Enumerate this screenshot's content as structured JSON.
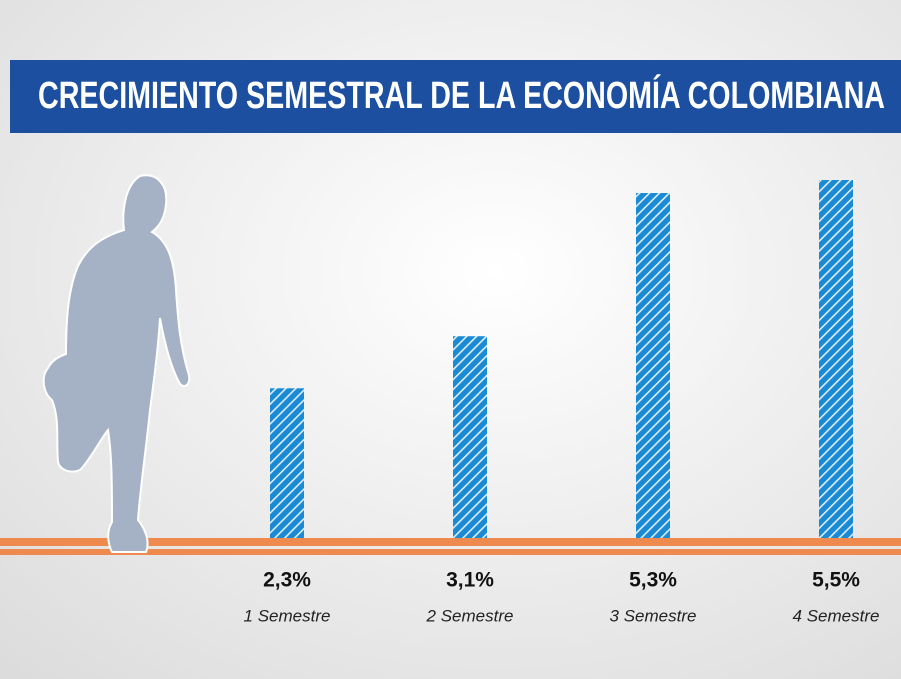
{
  "chart_data": {
    "type": "bar",
    "title": "CRECIMIENTO SEMESTRAL DE LA ECONOMÍA COLOMBIANA",
    "categories": [
      "1 Semestre",
      "2 Semestre",
      "3 Semestre",
      "4 Semestre"
    ],
    "values": [
      2.3,
      3.1,
      5.3,
      5.5
    ],
    "value_labels": [
      "2,3%",
      "3,1%",
      "5,3%",
      "5,5%"
    ],
    "color": "#1a8ad4"
  }
}
